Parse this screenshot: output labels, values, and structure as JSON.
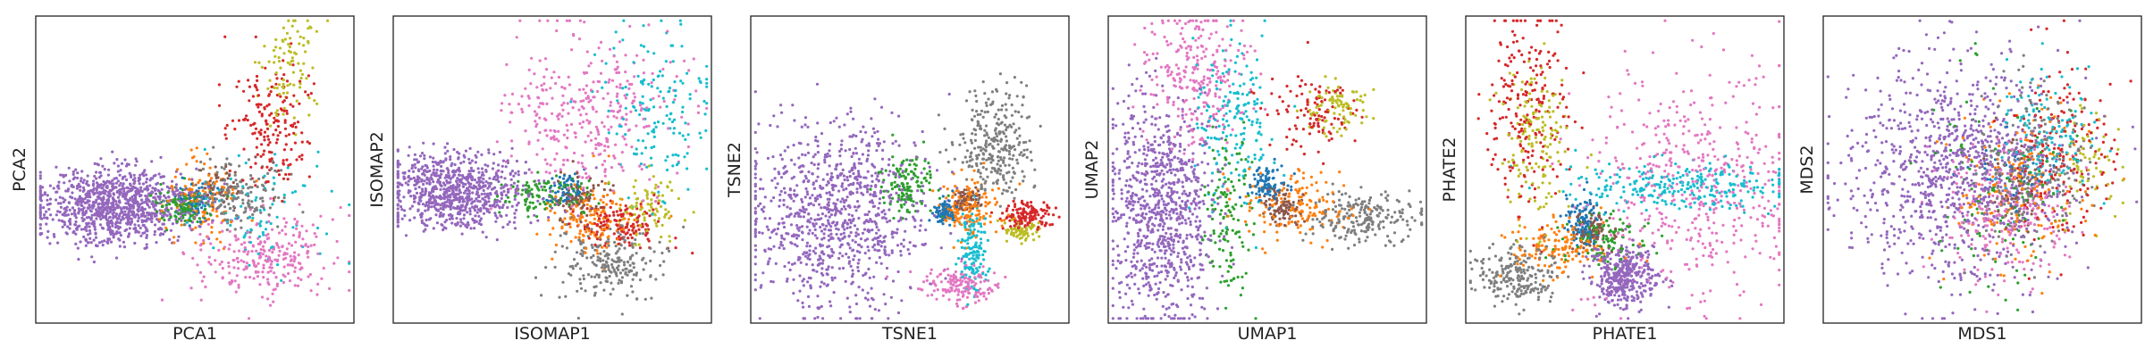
{
  "chart_data": [
    {
      "type": "scatter",
      "xlabel": "PCA1",
      "ylabel": "PCA2",
      "clusters": [
        {
          "color": "#9467bd",
          "center": [
            0.25,
            0.62
          ],
          "spread": [
            0.12,
            0.06
          ],
          "weight": 0.45
        },
        {
          "color": "#e377c2",
          "center": [
            0.72,
            0.78
          ],
          "spread": [
            0.11,
            0.07
          ],
          "weight": 0.12
        },
        {
          "color": "#7f7f7f",
          "center": [
            0.62,
            0.58
          ],
          "spread": [
            0.07,
            0.05
          ],
          "weight": 0.08
        },
        {
          "color": "#ff7f0e",
          "center": [
            0.52,
            0.6
          ],
          "spread": [
            0.06,
            0.07
          ],
          "weight": 0.06
        },
        {
          "color": "#d62728",
          "center": [
            0.74,
            0.35
          ],
          "spread": [
            0.06,
            0.12
          ],
          "weight": 0.08
        },
        {
          "color": "#bcbd22",
          "center": [
            0.8,
            0.18
          ],
          "spread": [
            0.05,
            0.1
          ],
          "weight": 0.04
        },
        {
          "color": "#2ca02c",
          "center": [
            0.45,
            0.62
          ],
          "spread": [
            0.05,
            0.03
          ],
          "weight": 0.05
        },
        {
          "color": "#1f77b4",
          "center": [
            0.5,
            0.6
          ],
          "spread": [
            0.03,
            0.03
          ],
          "weight": 0.03
        },
        {
          "color": "#17becf",
          "center": [
            0.72,
            0.62
          ],
          "spread": [
            0.12,
            0.1
          ],
          "weight": 0.04
        },
        {
          "color": "#8c564b",
          "center": [
            0.58,
            0.55
          ],
          "spread": [
            0.04,
            0.04
          ],
          "weight": 0.02
        }
      ]
    },
    {
      "type": "scatter",
      "xlabel": "ISOMAP1",
      "ylabel": "ISOMAP2",
      "clusters": [
        {
          "color": "#9467bd",
          "center": [
            0.2,
            0.57
          ],
          "spread": [
            0.12,
            0.06
          ],
          "weight": 0.38
        },
        {
          "color": "#e377c2",
          "center": [
            0.62,
            0.32
          ],
          "spread": [
            0.14,
            0.13
          ],
          "weight": 0.16
        },
        {
          "color": "#7f7f7f",
          "center": [
            0.68,
            0.8
          ],
          "spread": [
            0.08,
            0.06
          ],
          "weight": 0.1
        },
        {
          "color": "#ff7f0e",
          "center": [
            0.62,
            0.66
          ],
          "spread": [
            0.08,
            0.06
          ],
          "weight": 0.07
        },
        {
          "color": "#d62728",
          "center": [
            0.72,
            0.68
          ],
          "spread": [
            0.07,
            0.04
          ],
          "weight": 0.06
        },
        {
          "color": "#17becf",
          "center": [
            0.82,
            0.3
          ],
          "spread": [
            0.08,
            0.14
          ],
          "weight": 0.07
        },
        {
          "color": "#2ca02c",
          "center": [
            0.48,
            0.58
          ],
          "spread": [
            0.07,
            0.03
          ],
          "weight": 0.05
        },
        {
          "color": "#1f77b4",
          "center": [
            0.55,
            0.56
          ],
          "spread": [
            0.03,
            0.03
          ],
          "weight": 0.03
        },
        {
          "color": "#bcbd22",
          "center": [
            0.8,
            0.62
          ],
          "spread": [
            0.05,
            0.05
          ],
          "weight": 0.04
        },
        {
          "color": "#8c564b",
          "center": [
            0.58,
            0.6
          ],
          "spread": [
            0.04,
            0.04
          ],
          "weight": 0.04
        }
      ]
    },
    {
      "type": "scatter",
      "xlabel": "TSNE1",
      "ylabel": "TSNE2",
      "clusters": [
        {
          "color": "#9467bd",
          "center": [
            0.27,
            0.64
          ],
          "spread": [
            0.14,
            0.15
          ],
          "weight": 0.42
        },
        {
          "color": "#7f7f7f",
          "center": [
            0.77,
            0.42
          ],
          "spread": [
            0.06,
            0.09
          ],
          "weight": 0.13
        },
        {
          "color": "#e377c2",
          "center": [
            0.66,
            0.88
          ],
          "spread": [
            0.06,
            0.03
          ],
          "weight": 0.07
        },
        {
          "color": "#ff7f0e",
          "center": [
            0.68,
            0.62
          ],
          "spread": [
            0.05,
            0.05
          ],
          "weight": 0.07
        },
        {
          "color": "#d62728",
          "center": [
            0.87,
            0.65
          ],
          "spread": [
            0.04,
            0.02
          ],
          "weight": 0.06
        },
        {
          "color": "#bcbd22",
          "center": [
            0.85,
            0.7
          ],
          "spread": [
            0.03,
            0.015
          ],
          "weight": 0.03
        },
        {
          "color": "#17becf",
          "center": [
            0.7,
            0.76
          ],
          "spread": [
            0.02,
            0.07
          ],
          "weight": 0.06
        },
        {
          "color": "#2ca02c",
          "center": [
            0.49,
            0.55
          ],
          "spread": [
            0.04,
            0.05
          ],
          "weight": 0.06
        },
        {
          "color": "#1f77b4",
          "center": [
            0.61,
            0.64
          ],
          "spread": [
            0.02,
            0.02
          ],
          "weight": 0.04
        },
        {
          "color": "#8c564b",
          "center": [
            0.68,
            0.6
          ],
          "spread": [
            0.02,
            0.02
          ],
          "weight": 0.03
        }
      ]
    },
    {
      "type": "scatter",
      "xlabel": "UMAP1",
      "ylabel": "UMAP2",
      "clusters": [
        {
          "color": "#9467bd",
          "center": [
            0.17,
            0.64
          ],
          "spread": [
            0.08,
            0.18
          ],
          "weight": 0.4
        },
        {
          "color": "#e377c2",
          "center": [
            0.27,
            0.18
          ],
          "spread": [
            0.08,
            0.12
          ],
          "weight": 0.12
        },
        {
          "color": "#17becf",
          "center": [
            0.4,
            0.33
          ],
          "spread": [
            0.06,
            0.13
          ],
          "weight": 0.08
        },
        {
          "color": "#7f7f7f",
          "center": [
            0.8,
            0.66
          ],
          "spread": [
            0.09,
            0.04
          ],
          "weight": 0.1
        },
        {
          "color": "#ff7f0e",
          "center": [
            0.6,
            0.62
          ],
          "spread": [
            0.09,
            0.05
          ],
          "weight": 0.07
        },
        {
          "color": "#d62728",
          "center": [
            0.65,
            0.32
          ],
          "spread": [
            0.07,
            0.06
          ],
          "weight": 0.05
        },
        {
          "color": "#bcbd22",
          "center": [
            0.72,
            0.3
          ],
          "spread": [
            0.05,
            0.04
          ],
          "weight": 0.04
        },
        {
          "color": "#2ca02c",
          "center": [
            0.38,
            0.66
          ],
          "spread": [
            0.04,
            0.14
          ],
          "weight": 0.06
        },
        {
          "color": "#1f77b4",
          "center": [
            0.5,
            0.55
          ],
          "spread": [
            0.03,
            0.03
          ],
          "weight": 0.04
        },
        {
          "color": "#8c564b",
          "center": [
            0.55,
            0.62
          ],
          "spread": [
            0.03,
            0.03
          ],
          "weight": 0.04
        }
      ]
    },
    {
      "type": "scatter",
      "xlabel": "PHATE1",
      "ylabel": "PHATE2",
      "clusters": [
        {
          "color": "#9467bd",
          "center": [
            0.5,
            0.85
          ],
          "spread": [
            0.05,
            0.05
          ],
          "weight": 0.18
        },
        {
          "color": "#e377c2",
          "center": [
            0.72,
            0.55
          ],
          "spread": [
            0.17,
            0.2
          ],
          "weight": 0.22
        },
        {
          "color": "#17becf",
          "center": [
            0.68,
            0.55
          ],
          "spread": [
            0.18,
            0.04
          ],
          "weight": 0.12
        },
        {
          "color": "#7f7f7f",
          "center": [
            0.16,
            0.85
          ],
          "spread": [
            0.06,
            0.05
          ],
          "weight": 0.1
        },
        {
          "color": "#ff7f0e",
          "center": [
            0.3,
            0.76
          ],
          "spread": [
            0.08,
            0.05
          ],
          "weight": 0.07
        },
        {
          "color": "#d62728",
          "center": [
            0.2,
            0.3
          ],
          "spread": [
            0.06,
            0.18
          ],
          "weight": 0.1
        },
        {
          "color": "#bcbd22",
          "center": [
            0.22,
            0.4
          ],
          "spread": [
            0.05,
            0.14
          ],
          "weight": 0.07
        },
        {
          "color": "#2ca02c",
          "center": [
            0.44,
            0.72
          ],
          "spread": [
            0.06,
            0.04
          ],
          "weight": 0.05
        },
        {
          "color": "#1f77b4",
          "center": [
            0.37,
            0.67
          ],
          "spread": [
            0.03,
            0.04
          ],
          "weight": 0.05
        },
        {
          "color": "#8c564b",
          "center": [
            0.4,
            0.7
          ],
          "spread": [
            0.03,
            0.03
          ],
          "weight": 0.04
        }
      ]
    },
    {
      "type": "scatter",
      "xlabel": "MDS1",
      "ylabel": "MDS2",
      "clusters": [
        {
          "color": "#9467bd",
          "center": [
            0.42,
            0.5
          ],
          "spread": [
            0.17,
            0.18
          ],
          "weight": 0.45
        },
        {
          "color": "#e377c2",
          "center": [
            0.58,
            0.66
          ],
          "spread": [
            0.1,
            0.12
          ],
          "weight": 0.1
        },
        {
          "color": "#7f7f7f",
          "center": [
            0.65,
            0.5
          ],
          "spread": [
            0.09,
            0.12
          ],
          "weight": 0.1
        },
        {
          "color": "#ff7f0e",
          "center": [
            0.62,
            0.55
          ],
          "spread": [
            0.1,
            0.14
          ],
          "weight": 0.08
        },
        {
          "color": "#d62728",
          "center": [
            0.75,
            0.45
          ],
          "spread": [
            0.08,
            0.14
          ],
          "weight": 0.08
        },
        {
          "color": "#17becf",
          "center": [
            0.68,
            0.4
          ],
          "spread": [
            0.08,
            0.13
          ],
          "weight": 0.06
        },
        {
          "color": "#2ca02c",
          "center": [
            0.55,
            0.55
          ],
          "spread": [
            0.12,
            0.16
          ],
          "weight": 0.05
        },
        {
          "color": "#bcbd22",
          "center": [
            0.82,
            0.45
          ],
          "spread": [
            0.05,
            0.1
          ],
          "weight": 0.03
        },
        {
          "color": "#1f77b4",
          "center": [
            0.6,
            0.5
          ],
          "spread": [
            0.06,
            0.06
          ],
          "weight": 0.02
        },
        {
          "color": "#8c564b",
          "center": [
            0.6,
            0.55
          ],
          "spread": [
            0.06,
            0.08
          ],
          "weight": 0.03
        }
      ]
    }
  ]
}
